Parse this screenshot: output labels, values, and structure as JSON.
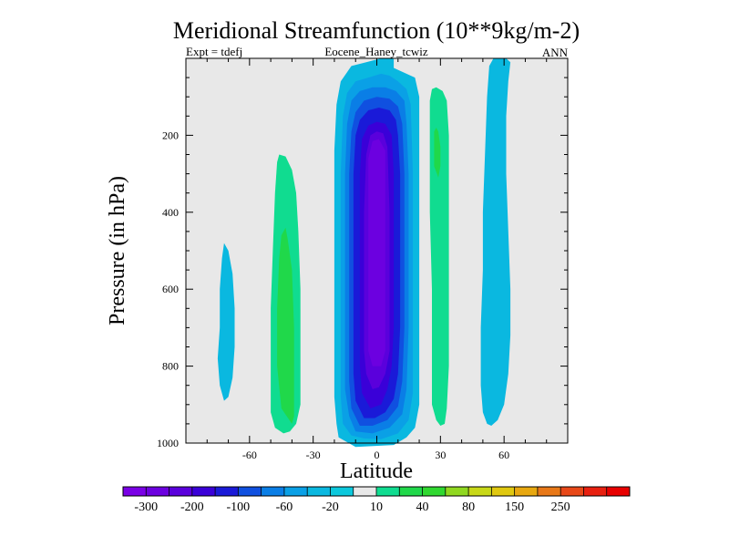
{
  "chart_data": {
    "type": "contour",
    "title": "Meridional Streamfunction (10**9kg/m-2)",
    "subtitle_left": "Expt = tdefj",
    "subtitle_center": "Eocene_Haney_tcwiz",
    "subtitle_right": "ANN",
    "xlabel": "Latitude",
    "ylabel": "Pressure (in hPa)",
    "xlim": [
      -90,
      90
    ],
    "ylim": [
      1000,
      0
    ],
    "y_reversed": true,
    "xticks": [
      -60,
      -30,
      0,
      30,
      60
    ],
    "xtick_labels": [
      "-60",
      "-30",
      "0",
      "30",
      "60"
    ],
    "yticks": [
      200,
      400,
      600,
      800,
      1000
    ],
    "ytick_labels": [
      "200",
      "400",
      "600",
      "800",
      "1000"
    ],
    "background_color": "#e8e8e8",
    "colorbar": {
      "colors": [
        "#7a00e6",
        "#6c00e0",
        "#5a00dc",
        "#3a00d8",
        "#1a1ad8",
        "#1050e0",
        "#0a7ee6",
        "#0aa0e6",
        "#0ab8e0",
        "#0cc8dc",
        "#e8e8e8",
        "#10dc90",
        "#20d84a",
        "#30d830",
        "#90d820",
        "#c8d818",
        "#e0c810",
        "#e8a810",
        "#e87818",
        "#e84818",
        "#e82010",
        "#e80000"
      ],
      "labels": [
        "-300",
        "-200",
        "-100",
        "-60",
        "-20",
        "10",
        "40",
        "80",
        "150",
        "250"
      ]
    },
    "regions": [
      {
        "name": "outer-cyan-core",
        "color": "#0ab8e0",
        "level": -20,
        "points": [
          [
            -10,
            1010
          ],
          [
            -18,
            985
          ],
          [
            -19,
            950
          ],
          [
            -20,
            880
          ],
          [
            -20,
            750
          ],
          [
            -20,
            600
          ],
          [
            -20,
            420
          ],
          [
            -20,
            240
          ],
          [
            -19,
            120
          ],
          [
            -17,
            60
          ],
          [
            -12,
            20
          ],
          [
            -5,
            10
          ],
          [
            2,
            0
          ],
          [
            6,
            0
          ],
          [
            8,
            2
          ],
          [
            8,
            25
          ],
          [
            12,
            35
          ],
          [
            18,
            50
          ],
          [
            20,
            100
          ],
          [
            20,
            300
          ],
          [
            20,
            500
          ],
          [
            20,
            700
          ],
          [
            20,
            900
          ],
          [
            18,
            960
          ],
          [
            14,
            985
          ],
          [
            8,
            1005
          ]
        ]
      },
      {
        "name": "ring-2",
        "color": "#0aa0e6",
        "level": -40,
        "points": [
          [
            -12,
            980
          ],
          [
            -16,
            950
          ],
          [
            -17,
            880
          ],
          [
            -17,
            700
          ],
          [
            -17,
            500
          ],
          [
            -17,
            300
          ],
          [
            -16,
            150
          ],
          [
            -14,
            90
          ],
          [
            -10,
            60
          ],
          [
            -4,
            50
          ],
          [
            2,
            40
          ],
          [
            6,
            45
          ],
          [
            10,
            60
          ],
          [
            14,
            80
          ],
          [
            16,
            120
          ],
          [
            17,
            300
          ],
          [
            17,
            500
          ],
          [
            17,
            700
          ],
          [
            17,
            870
          ],
          [
            15,
            940
          ],
          [
            10,
            975
          ],
          [
            2,
            990
          ],
          [
            -6,
            988
          ]
        ]
      },
      {
        "name": "ring-3",
        "color": "#0a7ee6",
        "level": -60,
        "points": [
          [
            -10,
            970
          ],
          [
            -13,
            930
          ],
          [
            -15,
            860
          ],
          [
            -15,
            700
          ],
          [
            -15,
            500
          ],
          [
            -15,
            300
          ],
          [
            -14,
            170
          ],
          [
            -12,
            110
          ],
          [
            -8,
            85
          ],
          [
            -2,
            75
          ],
          [
            4,
            75
          ],
          [
            9,
            85
          ],
          [
            13,
            110
          ],
          [
            14,
            170
          ],
          [
            15,
            300
          ],
          [
            15,
            500
          ],
          [
            15,
            700
          ],
          [
            14,
            860
          ],
          [
            12,
            925
          ],
          [
            6,
            960
          ],
          [
            -2,
            975
          ]
        ]
      },
      {
        "name": "ring-4",
        "color": "#1050e0",
        "level": -80,
        "points": [
          [
            -8,
            955
          ],
          [
            -12,
            910
          ],
          [
            -13,
            840
          ],
          [
            -13,
            700
          ],
          [
            -13,
            500
          ],
          [
            -13,
            300
          ],
          [
            -12,
            190
          ],
          [
            -10,
            140
          ],
          [
            -6,
            110
          ],
          [
            0,
            100
          ],
          [
            6,
            105
          ],
          [
            10,
            125
          ],
          [
            12,
            170
          ],
          [
            13,
            300
          ],
          [
            13,
            500
          ],
          [
            13,
            700
          ],
          [
            12,
            840
          ],
          [
            10,
            905
          ],
          [
            5,
            940
          ],
          [
            -2,
            955
          ]
        ]
      },
      {
        "name": "ring-5",
        "color": "#1a1ad8",
        "level": -100,
        "points": [
          [
            -6,
            935
          ],
          [
            -10,
            890
          ],
          [
            -11,
            820
          ],
          [
            -11,
            700
          ],
          [
            -11,
            500
          ],
          [
            -11,
            300
          ],
          [
            -10,
            200
          ],
          [
            -8,
            160
          ],
          [
            -4,
            135
          ],
          [
            1,
            128
          ],
          [
            6,
            135
          ],
          [
            9,
            160
          ],
          [
            10,
            200
          ],
          [
            11,
            300
          ],
          [
            11,
            500
          ],
          [
            11,
            700
          ],
          [
            10,
            820
          ],
          [
            8,
            885
          ],
          [
            4,
            920
          ],
          [
            -1,
            935
          ]
        ]
      },
      {
        "name": "ring-6",
        "color": "#3a00d8",
        "level": -150,
        "points": [
          [
            -3,
            910
          ],
          [
            -7,
            870
          ],
          [
            -8,
            800
          ],
          [
            -8,
            700
          ],
          [
            -8,
            500
          ],
          [
            -8,
            300
          ],
          [
            -7,
            210
          ],
          [
            -4,
            175
          ],
          [
            0,
            165
          ],
          [
            4,
            170
          ],
          [
            7,
            200
          ],
          [
            8,
            300
          ],
          [
            8,
            500
          ],
          [
            8,
            700
          ],
          [
            7,
            800
          ],
          [
            5,
            860
          ],
          [
            2,
            900
          ]
        ]
      },
      {
        "name": "ring-7",
        "color": "#5a00dc",
        "level": -200,
        "points": [
          [
            -2,
            860
          ],
          [
            -5,
            820
          ],
          [
            -6,
            760
          ],
          [
            -6,
            600
          ],
          [
            -6,
            400
          ],
          [
            -5,
            250
          ],
          [
            -3,
            200
          ],
          [
            0,
            190
          ],
          [
            3,
            195
          ],
          [
            5,
            230
          ],
          [
            6,
            400
          ],
          [
            6,
            600
          ],
          [
            6,
            760
          ],
          [
            4,
            820
          ],
          [
            1,
            855
          ]
        ]
      },
      {
        "name": "ring-8",
        "color": "#6c00e0",
        "level": -300,
        "points": [
          [
            -2,
            800
          ],
          [
            -4,
            760
          ],
          [
            -4,
            600
          ],
          [
            -4,
            400
          ],
          [
            -4,
            260
          ],
          [
            -2,
            215
          ],
          [
            1,
            210
          ],
          [
            4,
            240
          ],
          [
            4,
            400
          ],
          [
            4,
            600
          ],
          [
            4,
            760
          ],
          [
            2,
            800
          ]
        ]
      },
      {
        "name": "sh-cyan-small",
        "color": "#0ab8e0",
        "level": -20,
        "points": [
          [
            -72,
            890
          ],
          [
            -74,
            850
          ],
          [
            -75,
            780
          ],
          [
            -74,
            700
          ],
          [
            -74,
            600
          ],
          [
            -73,
            520
          ],
          [
            -72,
            480
          ],
          [
            -70,
            500
          ],
          [
            -68,
            560
          ],
          [
            -67,
            650
          ],
          [
            -67,
            750
          ],
          [
            -68,
            830
          ],
          [
            -70,
            880
          ]
        ]
      },
      {
        "name": "sh-green-outer",
        "color": "#10dc90",
        "level": 10,
        "points": [
          [
            -44,
            975
          ],
          [
            -48,
            960
          ],
          [
            -50,
            920
          ],
          [
            -50,
            800
          ],
          [
            -50,
            650
          ],
          [
            -49,
            500
          ],
          [
            -48,
            350
          ],
          [
            -47,
            270
          ],
          [
            -46,
            250
          ],
          [
            -43,
            255
          ],
          [
            -40,
            290
          ],
          [
            -38,
            350
          ],
          [
            -37,
            450
          ],
          [
            -36,
            600
          ],
          [
            -36,
            750
          ],
          [
            -36,
            900
          ],
          [
            -38,
            950
          ],
          [
            -41,
            970
          ]
        ]
      },
      {
        "name": "sh-green-inner",
        "color": "#20d84a",
        "level": 20,
        "points": [
          [
            -40,
            950
          ],
          [
            -45,
            910
          ],
          [
            -47,
            800
          ],
          [
            -47,
            650
          ],
          [
            -46,
            520
          ],
          [
            -45,
            460
          ],
          [
            -43,
            440
          ],
          [
            -42,
            470
          ],
          [
            -40,
            550
          ],
          [
            -39,
            700
          ],
          [
            -39,
            850
          ],
          [
            -39,
            930
          ]
        ]
      },
      {
        "name": "nh-green-outer",
        "color": "#10dc90",
        "level": 10,
        "points": [
          [
            30,
            955
          ],
          [
            28,
            940
          ],
          [
            26,
            900
          ],
          [
            26,
            800
          ],
          [
            26,
            600
          ],
          [
            25,
            400
          ],
          [
            25,
            200
          ],
          [
            25,
            110
          ],
          [
            26,
            80
          ],
          [
            28,
            75
          ],
          [
            31,
            85
          ],
          [
            33,
            110
          ],
          [
            34,
            200
          ],
          [
            34,
            400
          ],
          [
            34,
            600
          ],
          [
            34,
            800
          ],
          [
            33,
            910
          ],
          [
            32,
            950
          ]
        ]
      },
      {
        "name": "nh-green-inner",
        "color": "#20d84a",
        "level": 20,
        "points": [
          [
            29,
            310
          ],
          [
            27,
            280
          ],
          [
            27,
            230
          ],
          [
            27,
            190
          ],
          [
            28,
            180
          ],
          [
            29,
            190
          ],
          [
            30,
            230
          ],
          [
            30,
            280
          ]
        ]
      },
      {
        "name": "nh-cyan-outer",
        "color": "#0ab8e0",
        "level": -20,
        "points": [
          [
            52,
            950
          ],
          [
            50,
            920
          ],
          [
            49,
            850
          ],
          [
            49,
            700
          ],
          [
            50,
            550
          ],
          [
            50,
            400
          ],
          [
            51,
            250
          ],
          [
            52,
            100
          ],
          [
            53,
            20
          ],
          [
            55,
            0
          ],
          [
            61,
            0
          ],
          [
            63,
            10
          ],
          [
            62,
            60
          ],
          [
            61,
            150
          ],
          [
            61,
            300
          ],
          [
            62,
            450
          ],
          [
            63,
            600
          ],
          [
            63,
            720
          ],
          [
            62,
            820
          ],
          [
            60,
            900
          ],
          [
            57,
            940
          ],
          [
            54,
            955
          ]
        ]
      }
    ]
  }
}
